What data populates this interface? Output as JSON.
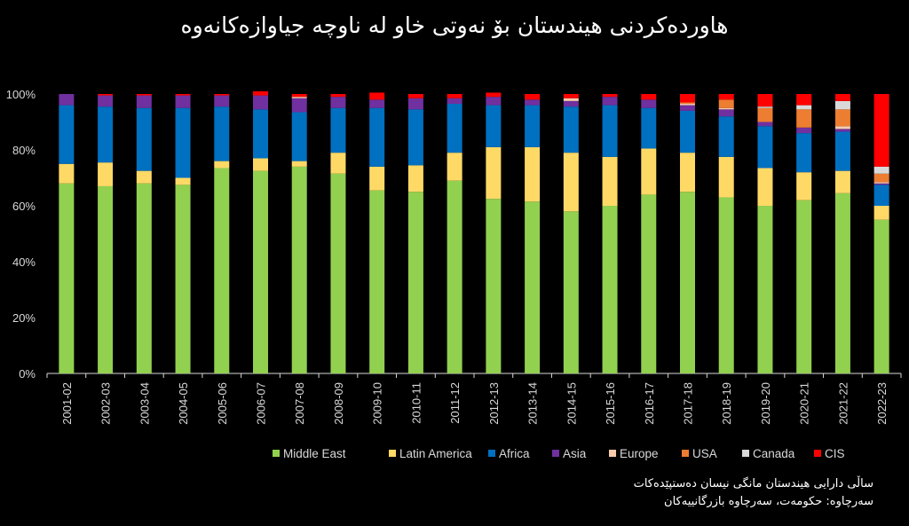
{
  "title": "هاوردەکردنی هیندستان بۆ نەوتی خاو لە ناوچە جیاوازەکانەوە",
  "notes": {
    "line1": "ساڵی دارایی هیندستان مانگی نیسان دەستپێدەکات",
    "line2": "سەرچاوە: حکومەت، سەرچاوە بازرگانییەکان"
  },
  "chart_data": {
    "type": "bar",
    "stacked": true,
    "title": "هاوردەکردنی هیندستان بۆ نەوتی خاو لە ناوچە جیاوازەکانەوە",
    "xlabel": "",
    "ylabel": "",
    "ylim": [
      0,
      100
    ],
    "yticks": [
      "0%",
      "20%",
      "40%",
      "60%",
      "80%",
      "100%"
    ],
    "grid": false,
    "legend_position": "bottom",
    "categories": [
      "2001-02",
      "2002-03",
      "2003-04",
      "2004-05",
      "2005-06",
      "2006-07",
      "2007-08",
      "2008-09",
      "2009-10",
      "2010-11",
      "2011-12",
      "2012-13",
      "2013-14",
      "2014-15",
      "2015-16",
      "2016-17",
      "2017-18",
      "2018-19",
      "2019-20",
      "2020-21",
      "2021-22",
      "2022-23"
    ],
    "series": [
      {
        "name": "Middle East",
        "color": "#92d050",
        "values": [
          68,
          67,
          68,
          67.5,
          73.5,
          72.5,
          74,
          71.5,
          65.5,
          65,
          69,
          62.5,
          61.5,
          58,
          60,
          64,
          65,
          63,
          60,
          62,
          64.5,
          55
        ]
      },
      {
        "name": "Latin America",
        "color": "#ffd966",
        "values": [
          7,
          8.5,
          4.5,
          2.5,
          2.5,
          4.5,
          2,
          7.5,
          8.5,
          9.5,
          10,
          18.5,
          19.5,
          21,
          17.5,
          16.5,
          14,
          14.5,
          13.5,
          10,
          8,
          5
        ]
      },
      {
        "name": "Africa",
        "color": "#0070c0",
        "values": [
          21,
          20,
          22.5,
          25,
          19.5,
          17.5,
          17.5,
          16,
          21,
          20,
          17.5,
          15,
          15,
          16.5,
          18.5,
          14.5,
          15,
          14.5,
          15,
          14,
          14,
          7.5
        ]
      },
      {
        "name": "Asia",
        "color": "#7030a0",
        "values": [
          4,
          4,
          4.5,
          4.5,
          4,
          5,
          5,
          4,
          3,
          4,
          2,
          3,
          2,
          2,
          3,
          3,
          2,
          2.5,
          1.5,
          2,
          1,
          0.5
        ]
      },
      {
        "name": "Europe",
        "color": "#f8cbad",
        "values": [
          0,
          0,
          0,
          0,
          0,
          0,
          0.5,
          0,
          0,
          0,
          0,
          0,
          0,
          1,
          0,
          0,
          0.5,
          0.5,
          0,
          0,
          1,
          0.5
        ]
      },
      {
        "name": "USA",
        "color": "#ed7d31",
        "values": [
          0,
          0,
          0,
          0,
          0,
          0,
          0,
          0,
          0,
          0,
          0,
          0,
          0,
          0,
          0,
          0,
          0.5,
          3,
          5,
          6.5,
          6,
          3
        ]
      },
      {
        "name": "Canada",
        "color": "#d9d9d9",
        "values": [
          0,
          0,
          0,
          0,
          0,
          0,
          0,
          0,
          0,
          0,
          0,
          0,
          0,
          0,
          0,
          0,
          0,
          0,
          0.5,
          1.5,
          3,
          2.5
        ]
      },
      {
        "name": "CIS",
        "color": "#ff0000",
        "values": [
          0,
          0.5,
          0.5,
          0.5,
          0.5,
          1.5,
          1,
          1,
          2.5,
          1.5,
          1.5,
          1.5,
          2,
          1.5,
          1,
          2,
          3,
          2,
          4.5,
          4,
          2.5,
          26
        ]
      }
    ]
  }
}
